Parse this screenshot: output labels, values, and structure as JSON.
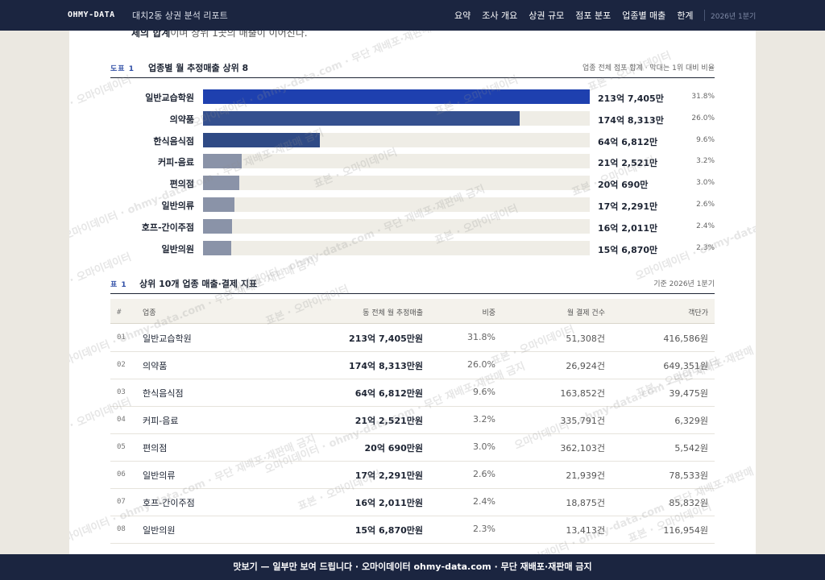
{
  "header": {
    "brand": "OHMY-DATA",
    "subtitle": "대치2동 상권 분석 리포트",
    "nav": [
      "요약",
      "조사 개요",
      "상권 규모",
      "점포 분포",
      "업종별 매출",
      "한계"
    ],
    "period": "2026년 1분기"
  },
  "intro": {
    "bold": "체의 합계",
    "rest": "이며 상위 1곳의 매출이 이어진다."
  },
  "figure1": {
    "num": "도표 1",
    "title": "업종별 월 추정매출 상위 8",
    "note": "업종 전체 점포 합계 · 막대는 1위 대비 비율",
    "bars": [
      {
        "name": "일반교습학원",
        "value": "213억 7,405만",
        "share": "31.8%",
        "ratio": 1.0,
        "color": "#1e40af"
      },
      {
        "name": "의약품",
        "value": "174억 8,313만",
        "share": "26.0%",
        "ratio": 0.818,
        "color": "#35508f"
      },
      {
        "name": "한식음식점",
        "value": "64억 6,812만",
        "share": "9.6%",
        "ratio": 0.303,
        "color": "#2f4a85"
      },
      {
        "name": "커피-음료",
        "value": "21억 2,521만",
        "share": "3.2%",
        "ratio": 0.099,
        "color": "#8a93a8"
      },
      {
        "name": "편의점",
        "value": "20억 690만",
        "share": "3.0%",
        "ratio": 0.094,
        "color": "#8a93a8"
      },
      {
        "name": "일반의류",
        "value": "17억 2,291만",
        "share": "2.6%",
        "ratio": 0.081,
        "color": "#8a93a8"
      },
      {
        "name": "호프-간이주점",
        "value": "16억 2,011만",
        "share": "2.4%",
        "ratio": 0.076,
        "color": "#8a93a8"
      },
      {
        "name": "일반의원",
        "value": "15억 6,870만",
        "share": "2.3%",
        "ratio": 0.073,
        "color": "#8a93a8"
      }
    ]
  },
  "table1": {
    "num": "표 1",
    "title": "상위 10개 업종 매출·결제 지표",
    "note": "기준 2026년 1분기",
    "headers": [
      "#",
      "업종",
      "동 전체 월 추정매출",
      "비중",
      "월 결제 건수",
      "객단가"
    ],
    "rows": [
      {
        "no": "01",
        "name": "일반교습학원",
        "sales": "213억 7,405만원",
        "share": "31.8%",
        "count": "51,308건",
        "avg": "416,586원"
      },
      {
        "no": "02",
        "name": "의약품",
        "sales": "174억 8,313만원",
        "share": "26.0%",
        "count": "26,924건",
        "avg": "649,351원"
      },
      {
        "no": "03",
        "name": "한식음식점",
        "sales": "64억 6,812만원",
        "share": "9.6%",
        "count": "163,852건",
        "avg": "39,475원"
      },
      {
        "no": "04",
        "name": "커피-음료",
        "sales": "21억 2,521만원",
        "share": "3.2%",
        "count": "335,791건",
        "avg": "6,329원"
      },
      {
        "no": "05",
        "name": "편의점",
        "sales": "20억 690만원",
        "share": "3.0%",
        "count": "362,103건",
        "avg": "5,542원"
      },
      {
        "no": "06",
        "name": "일반의류",
        "sales": "17억 2,291만원",
        "share": "2.6%",
        "count": "21,939건",
        "avg": "78,533원"
      },
      {
        "no": "07",
        "name": "호프-간이주점",
        "sales": "16억 2,011만원",
        "share": "2.4%",
        "count": "18,875건",
        "avg": "85,832원"
      },
      {
        "no": "08",
        "name": "일반의원",
        "sales": "15억 6,870만원",
        "share": "2.3%",
        "count": "13,413건",
        "avg": "116,954원"
      }
    ]
  },
  "footer": "맛보기 — 일부만 보여 드립니다 · 오마이데이터 ohmy-data.com · 무단 재배포·재판매 금지",
  "watermark": {
    "a": "표본 · 오마이데이터",
    "b": "오마이데이터 · ohmy-data.com · 무단 재배포·재판매 금지"
  }
}
